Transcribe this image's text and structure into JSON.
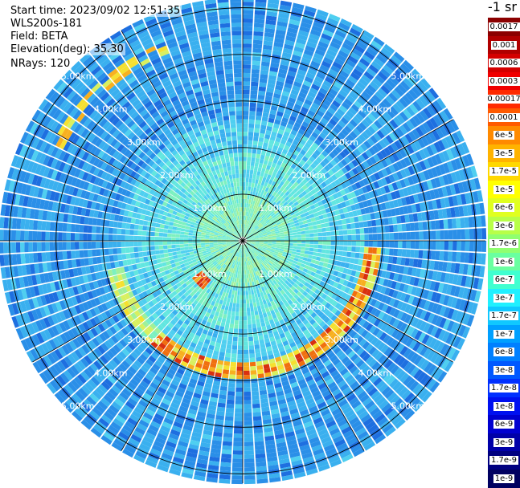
{
  "info": {
    "start_time": "Start time: 2023/09/02 12:51:35",
    "instrument": "WLS200s-181",
    "field": "Field: BETA",
    "elevation": "Elevation(deg): 35.30",
    "nrays": "NRays: 120"
  },
  "colorbar": {
    "unit_label": "-1 sr",
    "labels": [
      "0.0017",
      "0.001",
      "0.0006",
      "0.0003",
      "0.00017",
      "0.0001",
      "6e-5",
      "3e-5",
      "1.7e-5",
      "1e-5",
      "6e-6",
      "3e-6",
      "1.7e-6",
      "1e-6",
      "6e-7",
      "3e-7",
      "1.7e-7",
      "1e-7",
      "6e-8",
      "3e-8",
      "1.7e-8",
      "1e-8",
      "6e-9",
      "3e-9",
      "1.7e-9",
      "1e-9"
    ],
    "colors": [
      "#8b0000",
      "#b00000",
      "#d40000",
      "#f00000",
      "#ff2a00",
      "#ff5a00",
      "#ff8a00",
      "#ffb300",
      "#ffd800",
      "#ffff00",
      "#e0ff20",
      "#b8ff48",
      "#90ff70",
      "#6affa0",
      "#40ffd0",
      "#20f0ff",
      "#10c8ff",
      "#00a0ff",
      "#0080ff",
      "#0058ff",
      "#0030ff",
      "#0010f0",
      "#0000d0",
      "#0000a8",
      "#000080",
      "#000060"
    ]
  },
  "chart_data": {
    "type": "ppi-polar",
    "field": "BETA",
    "elevation_deg": 35.3,
    "nrays": 120,
    "range_rings_km": [
      1,
      2,
      3,
      4,
      5
    ],
    "ring_labels": [
      "1.00km",
      "2.00km",
      "3.00km",
      "4.00km",
      "5.00km"
    ],
    "max_range_km": 5.2,
    "radial_lines": 12,
    "value_scale": "log",
    "value_range": [
      1e-09,
      0.0017
    ]
  }
}
